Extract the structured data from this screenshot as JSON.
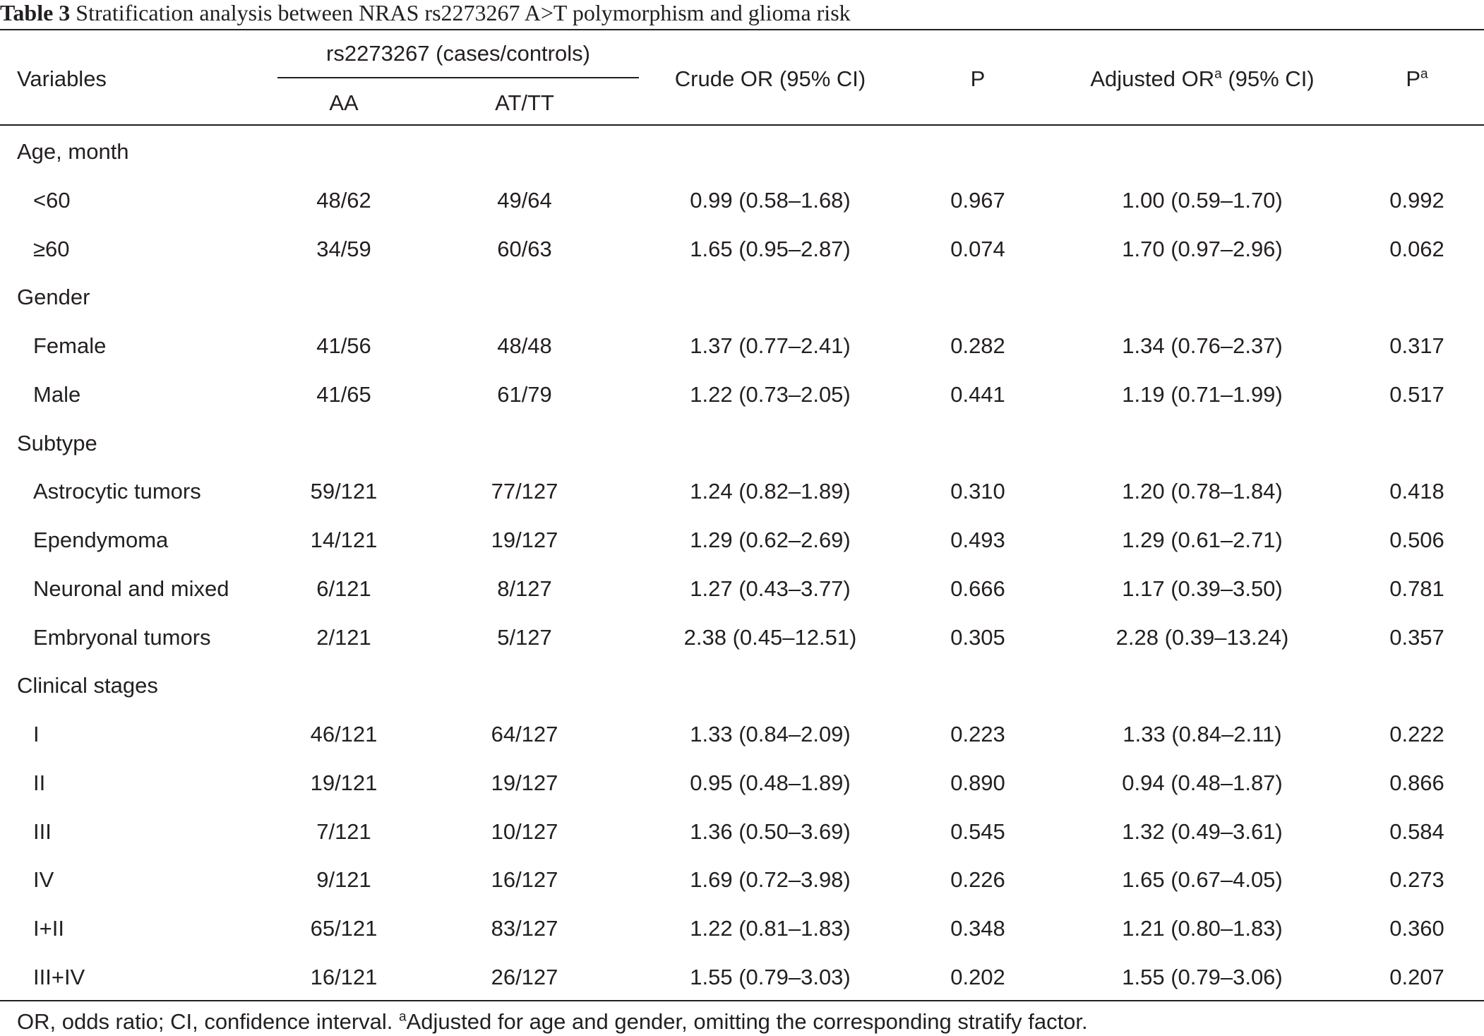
{
  "caption": {
    "label": "Table 3",
    "text": "Stratification analysis between NRAS rs2273267 A>T polymorphism and glioma risk"
  },
  "header": {
    "variables": "Variables",
    "group": "rs2273267 (cases/controls)",
    "aa": "AA",
    "attt": "AT/TT",
    "crude_or": "Crude OR (95% CI)",
    "p": "P",
    "adjusted_or_prefix": "Adjusted OR",
    "adjusted_or_sup": "a",
    "adjusted_or_suffix": " (95% CI)",
    "p_adj": "P",
    "p_adj_sup": "a"
  },
  "rows": [
    {
      "label": "Age, month",
      "group": true
    },
    {
      "label": "<60",
      "aa": "48/62",
      "attt": "49/64",
      "crude": "0.99 (0.58–1.68)",
      "p": "0.967",
      "adjusted": "1.00 (0.59–1.70)",
      "pa": "0.992"
    },
    {
      "label": "≥60",
      "aa": "34/59",
      "attt": "60/63",
      "crude": "1.65 (0.95–2.87)",
      "p": "0.074",
      "adjusted": "1.70 (0.97–2.96)",
      "pa": "0.062"
    },
    {
      "label": "Gender",
      "group": true
    },
    {
      "label": "Female",
      "aa": "41/56",
      "attt": "48/48",
      "crude": "1.37 (0.77–2.41)",
      "p": "0.282",
      "adjusted": "1.34 (0.76–2.37)",
      "pa": "0.317"
    },
    {
      "label": "Male",
      "aa": "41/65",
      "attt": "61/79",
      "crude": "1.22 (0.73–2.05)",
      "p": "0.441",
      "adjusted": "1.19 (0.71–1.99)",
      "pa": "0.517"
    },
    {
      "label": "Subtype",
      "group": true
    },
    {
      "label": "Astrocytic tumors",
      "aa": "59/121",
      "attt": "77/127",
      "crude": "1.24 (0.82–1.89)",
      "p": "0.310",
      "adjusted": "1.20 (0.78–1.84)",
      "pa": "0.418"
    },
    {
      "label": "Ependymoma",
      "aa": "14/121",
      "attt": "19/127",
      "crude": "1.29 (0.62–2.69)",
      "p": "0.493",
      "adjusted": "1.29 (0.61–2.71)",
      "pa": "0.506"
    },
    {
      "label": "Neuronal and mixed",
      "aa": "6/121",
      "attt": "8/127",
      "crude": "1.27 (0.43–3.77)",
      "p": "0.666",
      "adjusted": "1.17 (0.39–3.50)",
      "pa": "0.781"
    },
    {
      "label": "Embryonal tumors",
      "aa": "2/121",
      "attt": "5/127",
      "crude": "2.38 (0.45–12.51)",
      "p": "0.305",
      "adjusted": "2.28 (0.39–13.24)",
      "pa": "0.357"
    },
    {
      "label": "Clinical stages",
      "group": true
    },
    {
      "label": "I",
      "aa": "46/121",
      "attt": "64/127",
      "crude": "1.33 (0.84–2.09)",
      "p": "0.223",
      "adjusted": "1.33 (0.84–2.11)",
      "pa": "0.222"
    },
    {
      "label": "II",
      "aa": "19/121",
      "attt": "19/127",
      "crude": "0.95 (0.48–1.89)",
      "p": "0.890",
      "adjusted": "0.94 (0.48–1.87)",
      "pa": "0.866"
    },
    {
      "label": "III",
      "aa": "7/121",
      "attt": "10/127",
      "crude": "1.36 (0.50–3.69)",
      "p": "0.545",
      "adjusted": "1.32 (0.49–3.61)",
      "pa": "0.584"
    },
    {
      "label": "IV",
      "aa": "9/121",
      "attt": "16/127",
      "crude": "1.69 (0.72–3.98)",
      "p": "0.226",
      "adjusted": "1.65 (0.67–4.05)",
      "pa": "0.273"
    },
    {
      "label": "I+II",
      "aa": "65/121",
      "attt": "83/127",
      "crude": "1.22 (0.81–1.83)",
      "p": "0.348",
      "adjusted": "1.21 (0.80–1.83)",
      "pa": "0.360"
    },
    {
      "label": "III+IV",
      "aa": "16/121",
      "attt": "26/127",
      "crude": "1.55 (0.79–3.03)",
      "p": "0.202",
      "adjusted": "1.55 (0.79–3.06)",
      "pa": "0.207"
    }
  ],
  "footnote": {
    "text1": "OR, odds ratio; CI, confidence interval. ",
    "sup": "a",
    "text2": "Adjusted for age and gender, omitting the corresponding stratify factor."
  }
}
